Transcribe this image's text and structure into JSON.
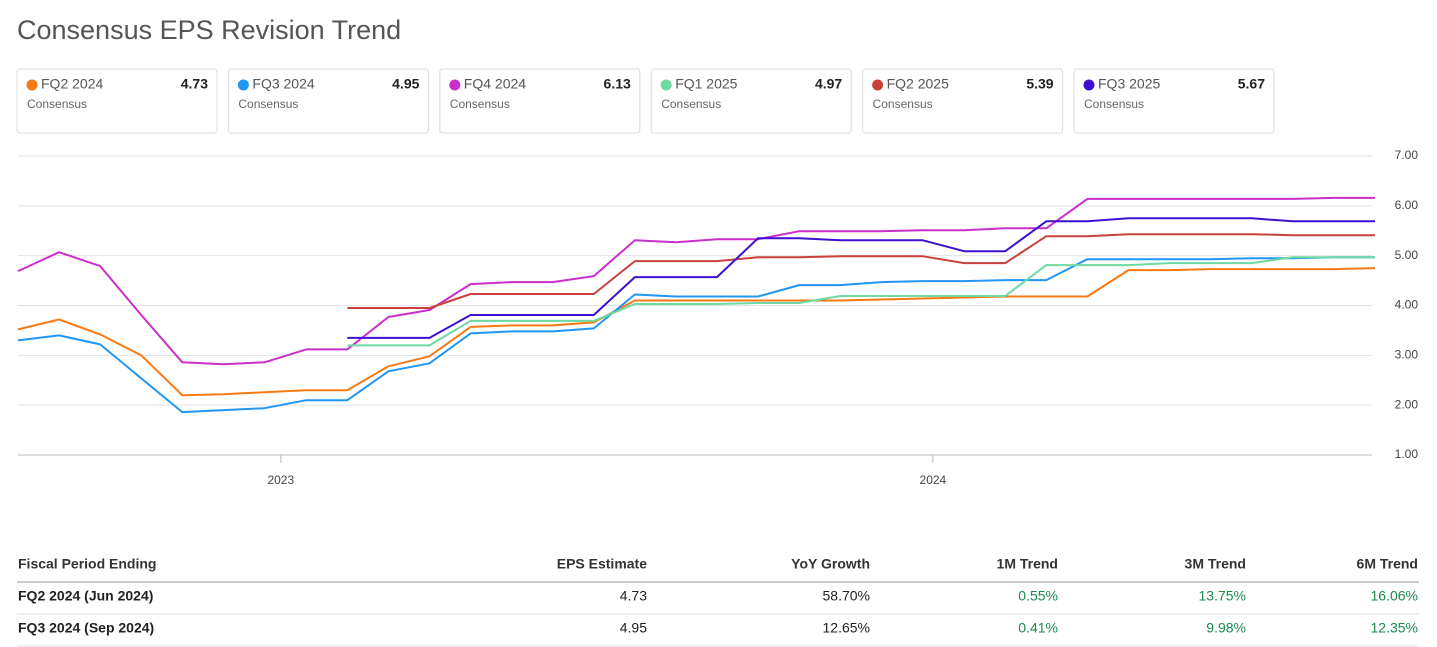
{
  "title": "Consensus EPS Revision Trend",
  "chart_data": {
    "type": "line",
    "legend_caption": "Consensus",
    "x": [
      2022.597,
      2022.66,
      2022.723,
      2022.786,
      2022.849,
      2022.912,
      2022.975,
      2023.039,
      2023.102,
      2023.165,
      2023.228,
      2023.291,
      2023.354,
      2023.417,
      2023.48,
      2023.543,
      2023.606,
      2023.669,
      2023.732,
      2023.795,
      2023.858,
      2023.921,
      2023.984,
      2024.048,
      2024.111,
      2024.174,
      2024.237,
      2024.3,
      2024.363,
      2024.426,
      2024.489,
      2024.552,
      2024.615,
      2024.678
    ],
    "xlim": [
      2022.597,
      2024.678
    ],
    "xticks": [
      2023,
      2024
    ],
    "ylim": [
      1,
      7
    ],
    "yticks": [
      {
        "value": 1,
        "label": "1.00"
      },
      {
        "value": 2,
        "label": "2.00"
      },
      {
        "value": 3,
        "label": "3.00"
      },
      {
        "value": 4,
        "label": "4.00"
      },
      {
        "value": 5,
        "label": "5.00"
      },
      {
        "value": 6,
        "label": "6.00"
      },
      {
        "value": 7,
        "label": "7.00"
      }
    ],
    "grid": true,
    "series": [
      {
        "name": "FQ2 2024",
        "color": "#f57a14",
        "consensus": 4.73,
        "values": [
          3.52,
          3.72,
          3.42,
          3.0,
          2.2,
          2.22,
          2.26,
          2.3,
          2.3,
          2.78,
          2.98,
          3.57,
          3.6,
          3.6,
          3.66,
          4.1,
          4.1,
          4.1,
          4.1,
          4.1,
          4.1,
          4.12,
          4.14,
          4.16,
          4.18,
          4.18,
          4.18,
          4.71,
          4.71,
          4.73,
          4.73,
          4.73,
          4.73,
          4.75
        ]
      },
      {
        "name": "FQ3 2024",
        "color": "#2196f3",
        "consensus": 4.95,
        "values": [
          3.3,
          3.4,
          3.22,
          2.54,
          1.86,
          1.9,
          1.94,
          2.1,
          2.1,
          2.68,
          2.84,
          3.44,
          3.48,
          3.48,
          3.54,
          4.22,
          4.18,
          4.18,
          4.18,
          4.41,
          4.41,
          4.47,
          4.49,
          4.49,
          4.51,
          4.51,
          4.93,
          4.93,
          4.93,
          4.93,
          4.95,
          4.95,
          4.97,
          4.97
        ]
      },
      {
        "name": "FQ4 2024",
        "color": "#cb2fcb",
        "consensus": 6.13,
        "values": [
          4.69,
          5.07,
          4.79,
          3.81,
          2.86,
          2.82,
          2.86,
          3.12,
          3.12,
          3.77,
          3.91,
          4.43,
          4.47,
          4.47,
          4.59,
          5.31,
          5.27,
          5.33,
          5.33,
          5.49,
          5.49,
          5.49,
          5.51,
          5.51,
          5.55,
          5.55,
          6.14,
          6.14,
          6.14,
          6.14,
          6.14,
          6.14,
          6.16,
          6.16
        ]
      },
      {
        "name": "FQ1 2025",
        "color": "#6fd9a3",
        "consensus": 4.97,
        "values": [
          null,
          null,
          null,
          null,
          null,
          null,
          null,
          null,
          3.2,
          3.2,
          3.2,
          3.69,
          3.69,
          3.69,
          3.69,
          4.03,
          4.03,
          4.03,
          4.05,
          4.05,
          4.19,
          4.19,
          4.19,
          4.19,
          4.19,
          4.81,
          4.81,
          4.81,
          4.85,
          4.85,
          4.85,
          4.97,
          4.97,
          4.97
        ]
      },
      {
        "name": "FQ2 2025",
        "color": "#c9413a",
        "consensus": 5.39,
        "values": [
          null,
          null,
          null,
          null,
          null,
          null,
          null,
          null,
          3.95,
          3.95,
          3.95,
          4.23,
          4.23,
          4.23,
          4.23,
          4.89,
          4.89,
          4.89,
          4.97,
          4.97,
          4.99,
          4.99,
          4.99,
          4.85,
          4.85,
          5.39,
          5.39,
          5.43,
          5.43,
          5.43,
          5.43,
          5.41,
          5.41,
          5.41
        ]
      },
      {
        "name": "FQ3 2025",
        "color": "#3d10d1",
        "consensus": 5.67,
        "values": [
          null,
          null,
          null,
          null,
          null,
          null,
          null,
          null,
          3.35,
          3.35,
          3.35,
          3.81,
          3.81,
          3.81,
          3.81,
          4.57,
          4.57,
          4.57,
          5.35,
          5.35,
          5.31,
          5.31,
          5.31,
          5.09,
          5.09,
          5.69,
          5.69,
          5.75,
          5.75,
          5.75,
          5.75,
          5.69,
          5.69,
          5.69
        ]
      }
    ]
  },
  "table": {
    "header": [
      "Fiscal Period Ending",
      "EPS Estimate",
      "YoY Growth",
      "1M Trend",
      "3M Trend",
      "6M Trend"
    ],
    "rows": [
      [
        "FQ2 2024 (Jun 2024)",
        "4.73",
        "58.70%",
        "0.55%",
        "13.75%",
        "16.06%"
      ],
      [
        "FQ3 2024 (Sep 2024)",
        "4.95",
        "12.65%",
        "0.41%",
        "9.98%",
        "12.35%"
      ]
    ]
  }
}
